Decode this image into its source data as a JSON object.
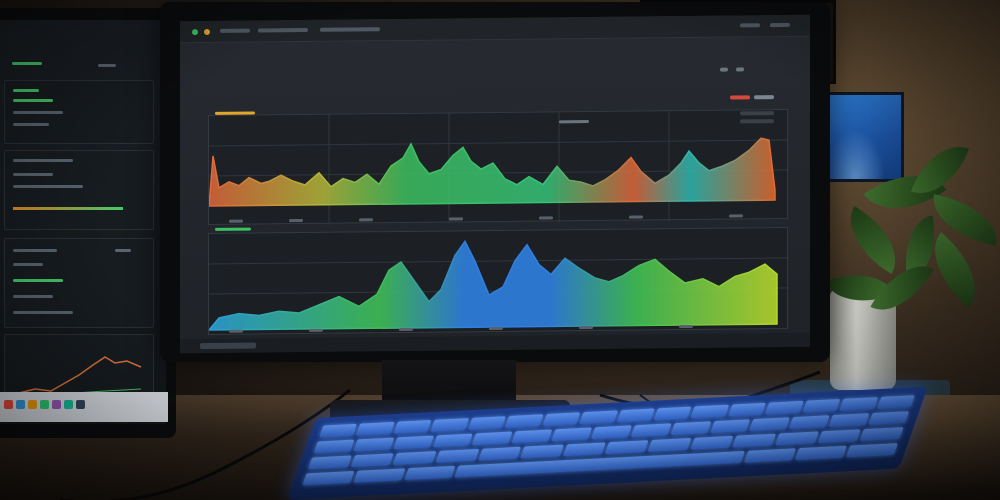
{
  "main_screen": {
    "title": "",
    "subtitle": "",
    "top_chart": {
      "type": "area",
      "colors": [
        "#e0673a",
        "#3cc060",
        "#2bb9b0",
        "#e66a2e"
      ]
    },
    "bottom_chart": {
      "type": "area",
      "colors": [
        "#2f7fe0",
        "#3fbf55",
        "#b6d62c"
      ]
    }
  },
  "left_screen": {
    "mini_chart_color": "#e2743c",
    "accent_color": "#46c76a"
  },
  "icons": {
    "window_close": "close-icon",
    "settings": "gear-icon"
  },
  "colors": {
    "keyboard_glow": "#3a74f0",
    "plant": "#3d6b2c"
  }
}
